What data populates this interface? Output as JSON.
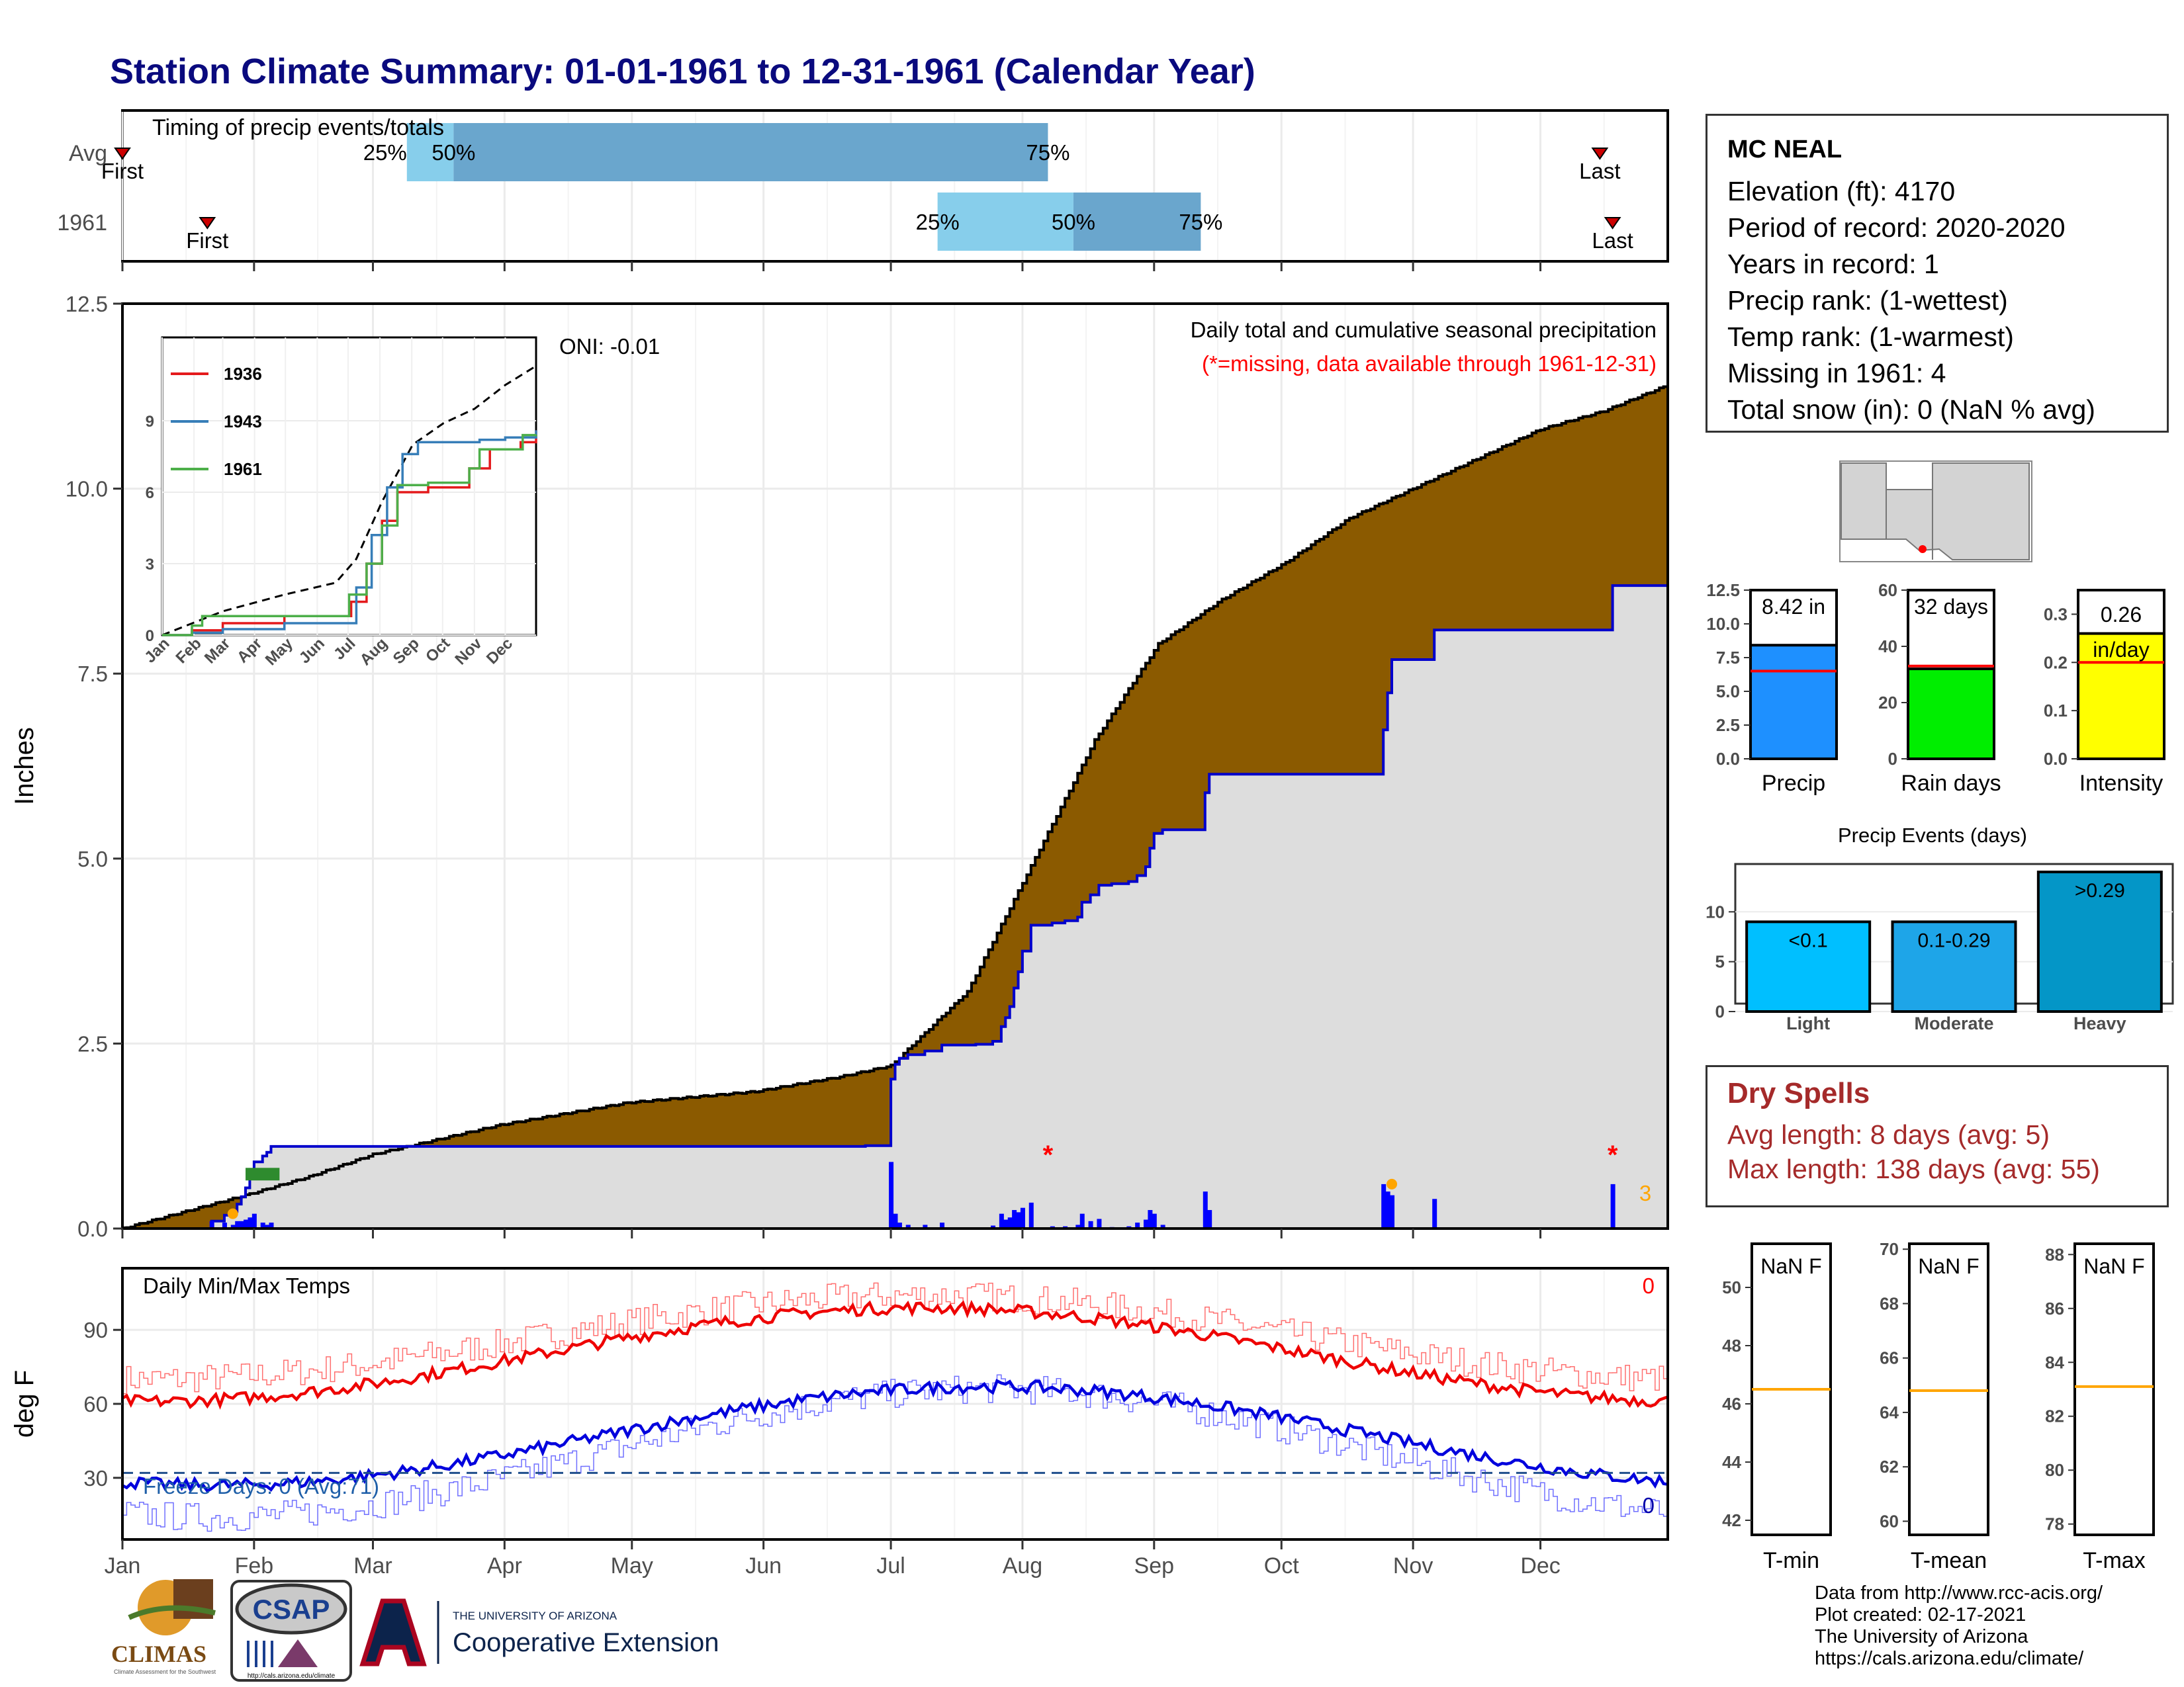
{
  "title": "Station Climate Summary: 01-01-1961 to 12-31-1961 (Calendar Year)",
  "timing": {
    "label": "Timing of precip events/totals",
    "rows": [
      {
        "name": "Avg",
        "first_day": 1,
        "last_day": 349,
        "p25_day": 68,
        "p50_day": 79,
        "p75_day": 219,
        "p25_label": "25%",
        "p50_label": "50%",
        "p75_label": "75%",
        "first_label": "First",
        "last_label": "Last"
      },
      {
        "name": "1961",
        "first_day": 21,
        "last_day": 352,
        "p25_day": 193,
        "p50_day": 225,
        "p75_day": 255,
        "p25_label": "25%",
        "p50_label": "50%",
        "p75_label": "75%",
        "first_label": "First",
        "last_label": "Last"
      }
    ]
  },
  "main_panel": {
    "ylabel": "Inches",
    "yticks": [
      "0.0",
      "2.5",
      "5.0",
      "7.5",
      "10.0",
      "12.5"
    ],
    "ylim": [
      0,
      12.5
    ],
    "oni_label": "ONI: -0.01",
    "legend_line1": "Daily total and cumulative seasonal precipitation",
    "legend_line2": "(*=missing, data available through 1961-12-31)",
    "missing_count": "3",
    "colors": {
      "avg_fill": "#8b5a00",
      "obs_fill": "#dddddd",
      "obs_line": "#0000cc",
      "bars": "#0000ff",
      "missing": "#ff0000",
      "snow": "#ffa500"
    }
  },
  "temp_panel": {
    "ylabel": "deg F",
    "title": "Daily Min/Max Temps",
    "yticks": [
      "30",
      "60",
      "90"
    ],
    "ylim": [
      5,
      115
    ],
    "freeze_label": "Freeze Days: 0 (Avg:71)",
    "max_count": "0",
    "min_count": "0",
    "freeze_line": 32
  },
  "months": [
    "Jan",
    "Feb",
    "Mar",
    "Apr",
    "May",
    "Jun",
    "Jul",
    "Aug",
    "Sep",
    "Oct",
    "Nov",
    "Dec"
  ],
  "inset": {
    "series": [
      {
        "name": "1936",
        "color": "#e41a1c"
      },
      {
        "name": "1943",
        "color": "#377eb8"
      },
      {
        "name": "1961",
        "color": "#4daf4a"
      }
    ],
    "yticks": [
      "0",
      "3",
      "6",
      "9"
    ],
    "ylim": [
      0,
      12.5
    ]
  },
  "station": {
    "name": "MC NEAL",
    "elevation": "Elevation (ft): 4170",
    "period": "Period of record: 2020-2020",
    "years": "Years in record: 1",
    "precip_rank": "Precip rank:  (1-wettest)",
    "temp_rank": "Temp rank:  (1-warmest)",
    "missing": "Missing in 1961: 4",
    "snow": "Total snow (in): 0 (NaN % avg)"
  },
  "bar_metrics": [
    {
      "name": "Precip",
      "value": 8.42,
      "label": "8.42 in",
      "avg": 6.5,
      "ylim": [
        0,
        12.5
      ],
      "yticks": [
        "0.0",
        "2.5",
        "5.0",
        "7.5",
        "10.0",
        "12.5"
      ],
      "color": "#1e90ff"
    },
    {
      "name": "Rain days",
      "value": 32,
      "label": "32 days",
      "avg": 33,
      "ylim": [
        0,
        60
      ],
      "yticks": [
        "0",
        "20",
        "40",
        "60"
      ],
      "color": "#00ee00"
    },
    {
      "name": "Intensity",
      "value": 0.26,
      "label_line1": "0.26",
      "label_line2": "in/day",
      "avg": 0.2,
      "ylim": [
        0,
        0.35
      ],
      "yticks": [
        "0.0",
        "0.1",
        "0.2",
        "0.3"
      ],
      "color": "#ffff00"
    }
  ],
  "precip_events": {
    "title": "Precip Events (days)",
    "yticks": [
      "0",
      "5",
      "10"
    ],
    "ylim": [
      0,
      14
    ],
    "bars": [
      {
        "category": "Light",
        "label": "<0.1",
        "value": 9,
        "color": "#00bfff"
      },
      {
        "category": "Moderate",
        "label": "0.1-0.29",
        "value": 9,
        "color": "#1ea5e8"
      },
      {
        "category": "Heavy",
        "label": ">0.29",
        "value": 14,
        "color": "#0496c7"
      }
    ]
  },
  "dry_spells": {
    "title": "Dry Spells",
    "avg_length": "Avg length: 8 days (avg: 5)",
    "max_length": "Max length: 138 days (avg: 55)"
  },
  "temp_boxes": [
    {
      "name": "T-min",
      "label": "NaN F",
      "avg": 46.5,
      "ylim": [
        41.5,
        51.5
      ],
      "yticks": [
        "42",
        "44",
        "46",
        "48",
        "50"
      ]
    },
    {
      "name": "T-mean",
      "label": "NaN F",
      "avg": 64.8,
      "ylim": [
        59.5,
        70.2
      ],
      "yticks": [
        "60",
        "62",
        "64",
        "66",
        "68",
        "70"
      ]
    },
    {
      "name": "T-max",
      "label": "NaN F",
      "avg": 83.1,
      "ylim": [
        77.6,
        88.4
      ],
      "yticks": [
        "78",
        "80",
        "82",
        "84",
        "86",
        "88"
      ]
    }
  ],
  "credits": {
    "line1": "Data from http://www.rcc-acis.org/",
    "line2": "Plot created: 02-17-2021",
    "line3": "The University of Arizona",
    "line4": "https://cals.arizona.edu/climate/"
  },
  "logos": {
    "climas": "CLIMAS",
    "climas_sub": "Climate Assessment for the Southwest",
    "csap": "CSAP",
    "csap_url": "http://cals.arizona.edu/climate",
    "ua_small": "THE UNIVERSITY OF ARIZONA",
    "ua_big": "Cooperative Extension"
  }
}
